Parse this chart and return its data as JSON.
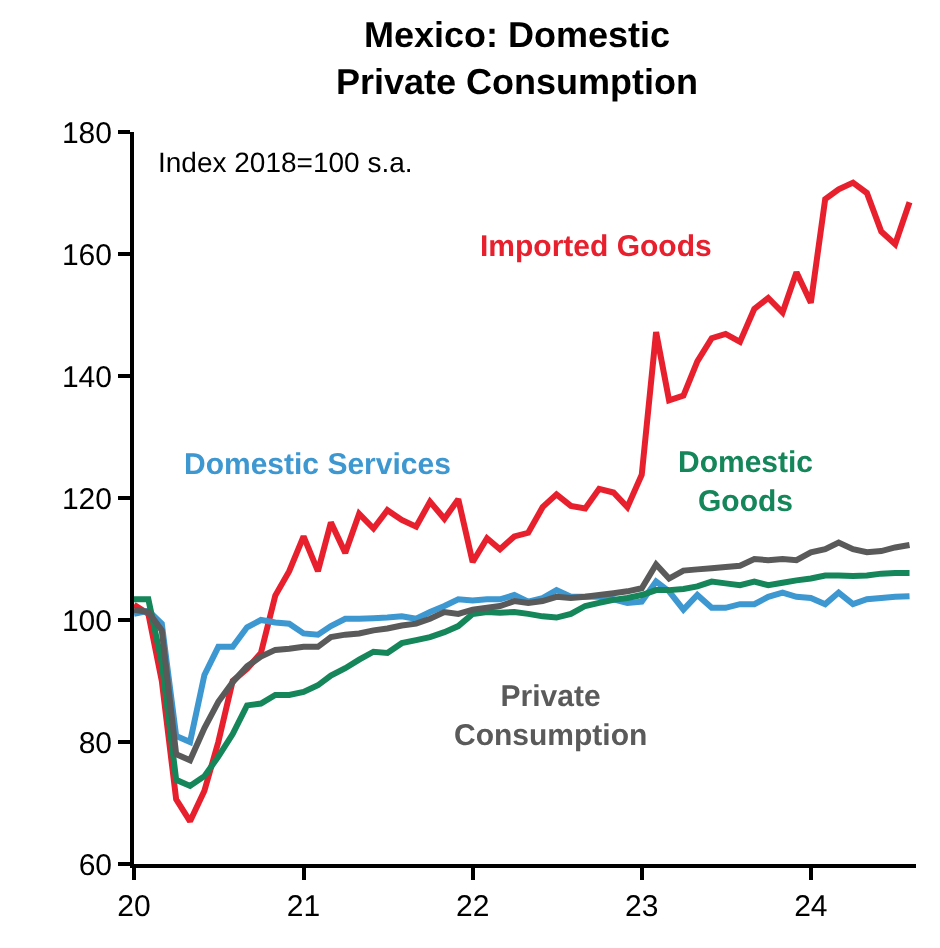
{
  "chart_data": {
    "type": "line",
    "title": "Mexico: Domestic\nPrivate Consumption",
    "x": [
      "2020-01",
      "2020-02",
      "2020-03",
      "2020-04",
      "2020-05",
      "2020-06",
      "2020-07",
      "2020-08",
      "2020-09",
      "2020-10",
      "2020-11",
      "2020-12",
      "2021-01",
      "2021-02",
      "2021-03",
      "2021-04",
      "2021-05",
      "2021-06",
      "2021-07",
      "2021-08",
      "2021-09",
      "2021-10",
      "2021-11",
      "2021-12",
      "2022-01",
      "2022-02",
      "2022-03",
      "2022-04",
      "2022-05",
      "2022-06",
      "2022-07",
      "2022-08",
      "2022-09",
      "2022-10",
      "2022-11",
      "2022-12",
      "2023-01",
      "2023-02",
      "2023-03",
      "2023-04",
      "2023-05",
      "2023-06",
      "2023-07",
      "2023-08",
      "2023-09",
      "2023-10",
      "2023-11",
      "2023-12",
      "2024-01",
      "2024-02",
      "2024-03",
      "2024-04",
      "2024-05",
      "2024-06",
      "2024-07",
      "2024-08"
    ],
    "series": [
      {
        "name": "Imported Goods",
        "color": "#e8202e",
        "values": [
          102.5,
          101,
          90,
          70.6,
          67,
          72,
          80,
          90,
          92,
          94.6,
          104,
          108,
          113.7,
          108,
          116,
          111,
          117.4,
          115,
          118,
          116.4,
          115.3,
          119.4,
          116.6,
          119.8,
          109.5,
          113.4,
          111.6,
          113.7,
          114.3,
          118.5,
          120.6,
          118.7,
          118.3,
          121.5,
          120.9,
          118.5,
          123.8,
          147.2,
          136,
          136.8,
          142.4,
          146.2,
          146.9,
          145.6,
          151,
          152.8,
          150.4,
          157,
          152,
          169,
          170.6,
          171.7,
          170,
          163.7,
          161.6,
          168.5
        ]
      },
      {
        "name": "Domestic Services",
        "color": "#3d97d1",
        "values": [
          101,
          101.5,
          99.4,
          81,
          80,
          91,
          95.6,
          95.6,
          98.8,
          100,
          99.6,
          99.4,
          97.8,
          97.6,
          99,
          100.2,
          100.2,
          100.3,
          100.4,
          100.6,
          100.2,
          101.3,
          102.3,
          103.4,
          103.2,
          103.4,
          103.4,
          104.1,
          103,
          103.6,
          104.9,
          103.8,
          103.8,
          103.8,
          103.4,
          102.8,
          103,
          106.3,
          104.7,
          101.7,
          104.1,
          102,
          102,
          102.6,
          102.6,
          103.8,
          104.5,
          103.8,
          103.6,
          102.6,
          104.5,
          102.6,
          103.4,
          103.6,
          103.8,
          103.9
        ]
      },
      {
        "name": "Domestic Goods",
        "color": "#14865a",
        "values": [
          103.4,
          103.4,
          93,
          73.8,
          72.8,
          74.4,
          77.6,
          81.3,
          86,
          86.3,
          87.7,
          87.7,
          88.2,
          89.3,
          90.9,
          92.1,
          93.5,
          94.8,
          94.6,
          96.2,
          96.7,
          97.2,
          98,
          99,
          101,
          101.3,
          101.2,
          101.3,
          101,
          100.6,
          100.4,
          101,
          102.3,
          102.8,
          103.3,
          103.6,
          104.1,
          104.9,
          104.9,
          105.1,
          105.5,
          106.3,
          106,
          105.7,
          106.3,
          105.7,
          106.1,
          106.5,
          106.8,
          107.3,
          107.3,
          107.2,
          107.3,
          107.6,
          107.7,
          107.7
        ]
      },
      {
        "name": "Private Consumption",
        "color": "#5a5a5a",
        "values": [
          101.7,
          101.3,
          98.3,
          78,
          77,
          82.3,
          86.6,
          89.8,
          92.4,
          94,
          95.1,
          95.3,
          95.6,
          95.6,
          97.2,
          97.6,
          97.8,
          98.3,
          98.6,
          99.1,
          99.4,
          100.2,
          101.3,
          101,
          101.7,
          102,
          102.3,
          103.1,
          102.8,
          103.1,
          103.8,
          103.6,
          103.8,
          104.1,
          104.4,
          104.7,
          105.2,
          109.1,
          106.8,
          108.1,
          108.3,
          108.5,
          108.7,
          108.9,
          110,
          109.8,
          110,
          109.8,
          111.1,
          111.6,
          112.7,
          111.6,
          111.1,
          111.3,
          111.9,
          112.3
        ]
      }
    ],
    "xlim": [
      "2020-01-01",
      "2024-08-15"
    ],
    "xticks": [
      {
        "value": "2020-01-01",
        "label": "20"
      },
      {
        "value": "2021-01-01",
        "label": "21"
      },
      {
        "value": "2022-01-01",
        "label": "22"
      },
      {
        "value": "2023-01-01",
        "label": "23"
      },
      {
        "value": "2024-01-01",
        "label": "24"
      }
    ],
    "ylim": [
      60,
      180
    ],
    "yticks": [
      60,
      80,
      100,
      120,
      140,
      160,
      180
    ],
    "annotations": [
      "Index 2018=100 s.a."
    ],
    "legend": false,
    "marker": "none",
    "line_style": "solid"
  }
}
